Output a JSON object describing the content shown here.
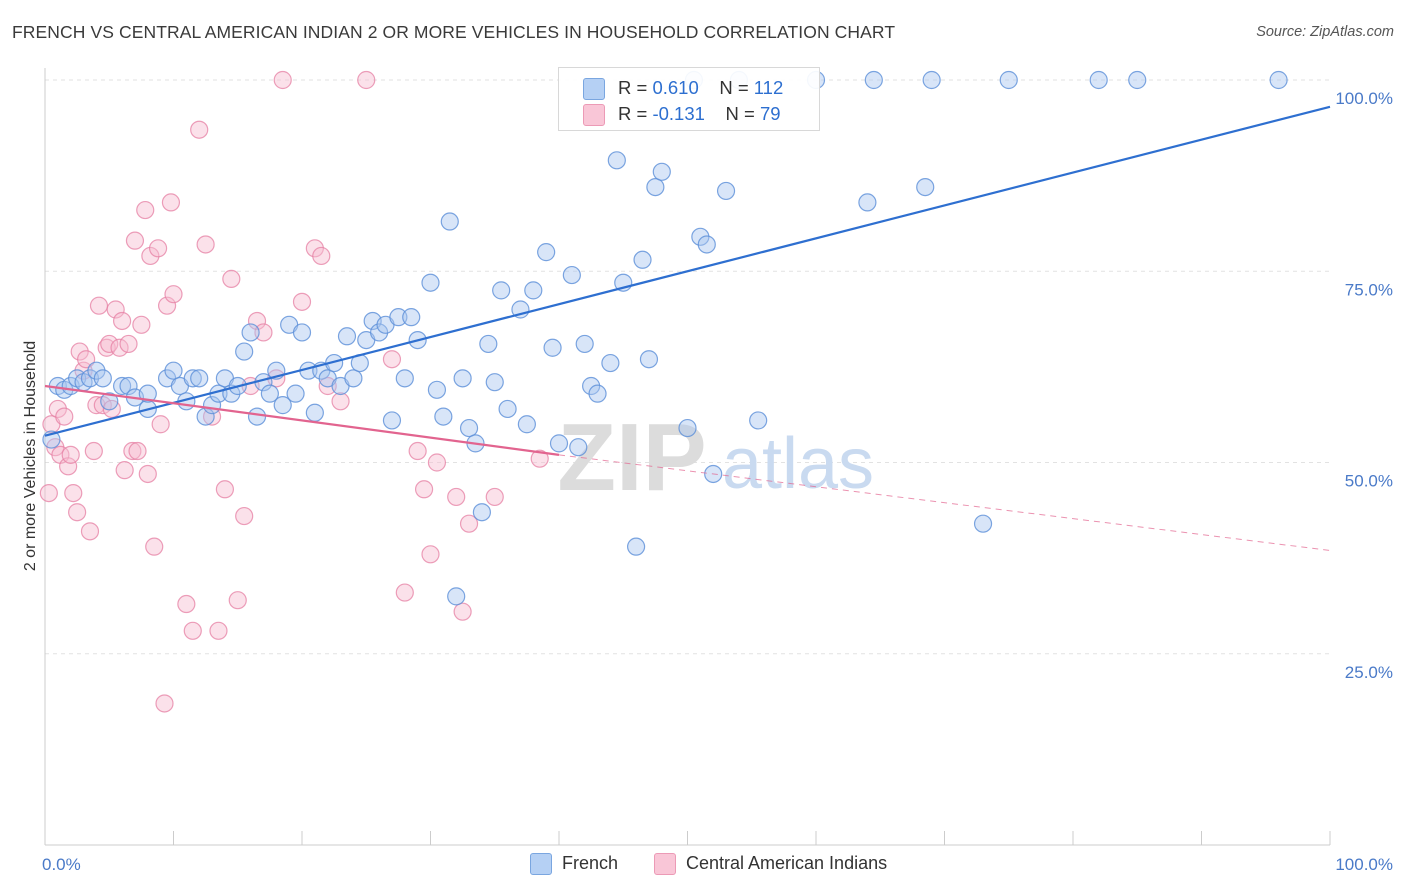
{
  "header": {
    "title": "FRENCH VS CENTRAL AMERICAN INDIAN 2 OR MORE VEHICLES IN HOUSEHOLD CORRELATION CHART",
    "source": "Source: ZipAtlas.com"
  },
  "watermark": {
    "zip": "ZIP",
    "atlas": "atlas"
  },
  "legend": {
    "french": {
      "r_label": "R =",
      "r_value": "0.610",
      "n_label": "N =",
      "n_value": "112"
    },
    "cai": {
      "r_label": "R =",
      "r_value": "-0.131",
      "n_label": "N =",
      "n_value": "79"
    }
  },
  "bottom_legend": {
    "french": "French",
    "cai": "Central American Indians"
  },
  "colors": {
    "french_fill": "#a9c6ef",
    "french_stroke": "#5b8fd8",
    "french_line": "#2e6fd0",
    "cai_fill": "#f7bcd0",
    "cai_stroke": "#e67fa3",
    "cai_line": "#e2648f",
    "tick_text": "#4a7ac8",
    "grid": "#e2e2e2"
  },
  "chart_data": {
    "type": "scatter",
    "title": "FRENCH VS CENTRAL AMERICAN INDIAN 2 OR MORE VEHICLES IN HOUSEHOLD CORRELATION CHART",
    "xlabel": "",
    "ylabel": "2 or more Vehicles in Household",
    "xlim": [
      0,
      100
    ],
    "ylim": [
      0,
      100
    ],
    "x_tick_labels": [
      "0.0%",
      "100.0%"
    ],
    "y_ticks": [
      25,
      50,
      75,
      100
    ],
    "y_tick_labels": [
      "25.0%",
      "50.0%",
      "75.0%",
      "100.0%"
    ],
    "grid": true,
    "legend_position": "top-center",
    "series": [
      {
        "name": "French",
        "r": 0.61,
        "n": 112,
        "trend": {
          "x": [
            0,
            100
          ],
          "y": [
            53.5,
            96.5
          ],
          "dashed_after": null
        },
        "points": [
          [
            0.5,
            53
          ],
          [
            1,
            60
          ],
          [
            1.5,
            59.5
          ],
          [
            2,
            60
          ],
          [
            2.5,
            61
          ],
          [
            3,
            60.5
          ],
          [
            3.5,
            61
          ],
          [
            4,
            62
          ],
          [
            4.5,
            61
          ],
          [
            5,
            58
          ],
          [
            6,
            60
          ],
          [
            6.5,
            60
          ],
          [
            7,
            58.5
          ],
          [
            8,
            57
          ],
          [
            8,
            59
          ],
          [
            9.5,
            61
          ],
          [
            10,
            62
          ],
          [
            10.5,
            60
          ],
          [
            11,
            58
          ],
          [
            11.5,
            61
          ],
          [
            12,
            61
          ],
          [
            12.5,
            56
          ],
          [
            13,
            57.5
          ],
          [
            13.5,
            59
          ],
          [
            14,
            61
          ],
          [
            14.5,
            59
          ],
          [
            15,
            60
          ],
          [
            15.5,
            64.5
          ],
          [
            16,
            67
          ],
          [
            16.5,
            56
          ],
          [
            17,
            60.5
          ],
          [
            17.5,
            59
          ],
          [
            18,
            62
          ],
          [
            18.5,
            57.5
          ],
          [
            19,
            68
          ],
          [
            19.5,
            59
          ],
          [
            20,
            67
          ],
          [
            20.5,
            62
          ],
          [
            21,
            56.5
          ],
          [
            21.5,
            62
          ],
          [
            22,
            61
          ],
          [
            22.5,
            63
          ],
          [
            23,
            60
          ],
          [
            23.5,
            66.5
          ],
          [
            24,
            61
          ],
          [
            24.5,
            63
          ],
          [
            25,
            66
          ],
          [
            25.5,
            68.5
          ],
          [
            26,
            67
          ],
          [
            26.5,
            68
          ],
          [
            27,
            55.5
          ],
          [
            27.5,
            69
          ],
          [
            28,
            61
          ],
          [
            28.5,
            69
          ],
          [
            29,
            66
          ],
          [
            30,
            73.5
          ],
          [
            30.5,
            59.5
          ],
          [
            31,
            56
          ],
          [
            31.5,
            81.5
          ],
          [
            32,
            32.5
          ],
          [
            32.5,
            61
          ],
          [
            33,
            54.5
          ],
          [
            33.5,
            52.5
          ],
          [
            34,
            43.5
          ],
          [
            34.5,
            65.5
          ],
          [
            35,
            60.5
          ],
          [
            35.5,
            72.5
          ],
          [
            36,
            57
          ],
          [
            37,
            70
          ],
          [
            37.5,
            55
          ],
          [
            38,
            72.5
          ],
          [
            39,
            77.5
          ],
          [
            39.5,
            65
          ],
          [
            40,
            52.5
          ],
          [
            41,
            74.5
          ],
          [
            41.5,
            52
          ],
          [
            42,
            65.5
          ],
          [
            42.5,
            60
          ],
          [
            43,
            59
          ],
          [
            44,
            63
          ],
          [
            44.5,
            89.5
          ],
          [
            45,
            73.5
          ],
          [
            46,
            39
          ],
          [
            46.5,
            76.5
          ],
          [
            47,
            63.5
          ],
          [
            47.5,
            86
          ],
          [
            48,
            88
          ],
          [
            50,
            54.5
          ],
          [
            50.5,
            100
          ],
          [
            51,
            79.5
          ],
          [
            51.5,
            78.5
          ],
          [
            52,
            48.5
          ],
          [
            53,
            85.5
          ],
          [
            54,
            100
          ],
          [
            55.5,
            55.5
          ],
          [
            60,
            100
          ],
          [
            64,
            84
          ],
          [
            64.5,
            100
          ],
          [
            68.5,
            86
          ],
          [
            69,
            100
          ],
          [
            73,
            42
          ],
          [
            75,
            100
          ],
          [
            82,
            100
          ],
          [
            85,
            100
          ],
          [
            96,
            100
          ]
        ]
      },
      {
        "name": "Central American Indians",
        "r": -0.131,
        "n": 79,
        "trend": {
          "x": [
            0,
            40,
            100
          ],
          "y": [
            60,
            51,
            38.5
          ],
          "dashed_after": 40
        },
        "points": [
          [
            0.3,
            46
          ],
          [
            0.5,
            55
          ],
          [
            0.8,
            52
          ],
          [
            1,
            57
          ],
          [
            1.2,
            51
          ],
          [
            1.5,
            56
          ],
          [
            1.8,
            49.5
          ],
          [
            2,
            51
          ],
          [
            2.2,
            46
          ],
          [
            2.5,
            43.5
          ],
          [
            2.7,
            64.5
          ],
          [
            3,
            62
          ],
          [
            3.2,
            63.5
          ],
          [
            3.5,
            41
          ],
          [
            3.8,
            51.5
          ],
          [
            4,
            57.5
          ],
          [
            4.2,
            70.5
          ],
          [
            4.5,
            57.5
          ],
          [
            4.8,
            65
          ],
          [
            5,
            65.5
          ],
          [
            5.2,
            57
          ],
          [
            5.5,
            70
          ],
          [
            5.8,
            65
          ],
          [
            6,
            68.5
          ],
          [
            6.2,
            49
          ],
          [
            6.5,
            65.5
          ],
          [
            6.8,
            51.5
          ],
          [
            7,
            79
          ],
          [
            7.2,
            51.5
          ],
          [
            7.5,
            68
          ],
          [
            7.8,
            83
          ],
          [
            8,
            48.5
          ],
          [
            8.2,
            77
          ],
          [
            8.5,
            39
          ],
          [
            8.8,
            78
          ],
          [
            9,
            55
          ],
          [
            9.3,
            18.5
          ],
          [
            9.5,
            70.5
          ],
          [
            9.8,
            84
          ],
          [
            10,
            72
          ],
          [
            11,
            31.5
          ],
          [
            11.5,
            28
          ],
          [
            12,
            93.5
          ],
          [
            12.5,
            78.5
          ],
          [
            13,
            56
          ],
          [
            13.5,
            28
          ],
          [
            14,
            46.5
          ],
          [
            14.5,
            74
          ],
          [
            15,
            32
          ],
          [
            15.5,
            43
          ],
          [
            16,
            60
          ],
          [
            16.5,
            68.5
          ],
          [
            17,
            67
          ],
          [
            18,
            61
          ],
          [
            18.5,
            100
          ],
          [
            20,
            71
          ],
          [
            21,
            78
          ],
          [
            21.5,
            77
          ],
          [
            22,
            60
          ],
          [
            23,
            58
          ],
          [
            25,
            100
          ],
          [
            27,
            63.5
          ],
          [
            28,
            33
          ],
          [
            29,
            51.5
          ],
          [
            29.5,
            46.5
          ],
          [
            30,
            38
          ],
          [
            30.5,
            50
          ],
          [
            32,
            45.5
          ],
          [
            32.5,
            30.5
          ],
          [
            33,
            42
          ],
          [
            35,
            45.5
          ],
          [
            38.5,
            50.5
          ]
        ]
      }
    ]
  }
}
